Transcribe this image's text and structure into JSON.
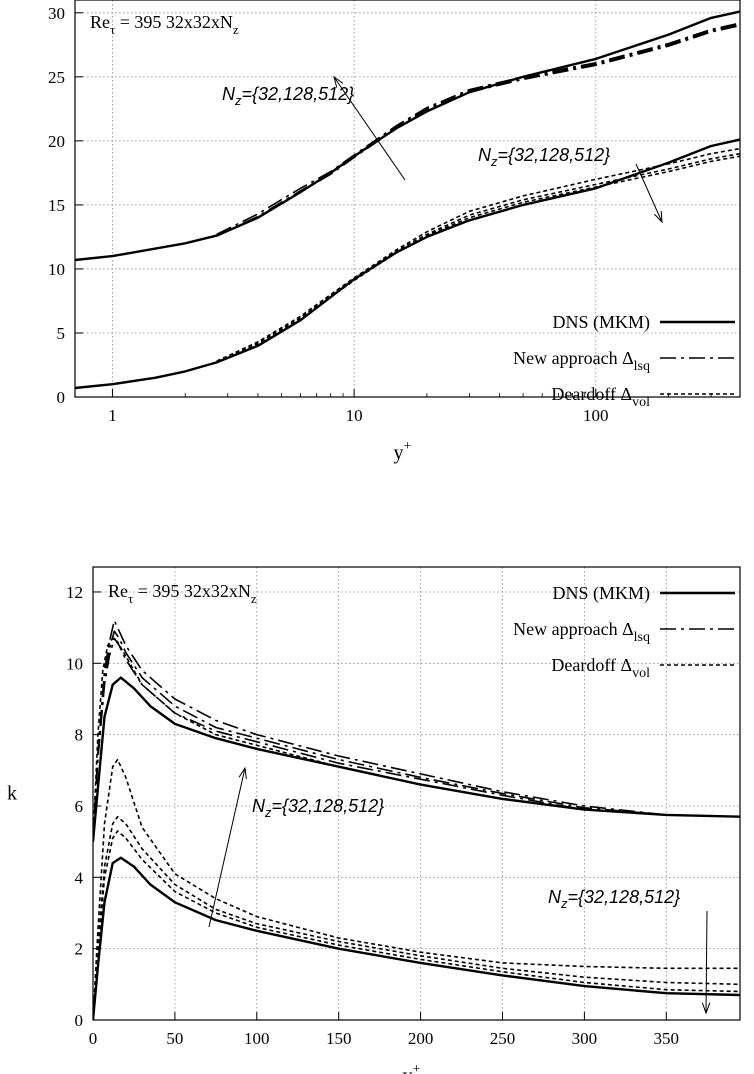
{
  "chart_data": [
    {
      "type": "line",
      "xscale": "log",
      "xlim": [
        0.7,
        395
      ],
      "ylim": [
        0,
        31
      ],
      "xlabel": "y+",
      "ylabel": "",
      "xticks": [
        1,
        10,
        100
      ],
      "yticks": [
        0,
        5,
        10,
        15,
        20,
        25,
        30
      ],
      "header": {
        "base": "Re",
        "sub": "τ",
        "rest": " = 395  32x32xN",
        "rest_sub": "z"
      },
      "annotation_upper": "N_z={32,128,512}",
      "annotation_lower": "N_z={32,128,512}",
      "legend_position": "bottom-right",
      "legend": [
        {
          "label": "DNS (MKM)",
          "sub": "",
          "style": "solid"
        },
        {
          "label": "New approach  Δ",
          "sub": "lsq",
          "style": "dashdot"
        },
        {
          "label": "Deardoff  Δ",
          "sub": "vol",
          "style": "dotted"
        }
      ],
      "series": [
        {
          "group": "upper",
          "style": "solid",
          "x": [
            0.7,
            1,
            2,
            2.7,
            4,
            6,
            8,
            10,
            15,
            20,
            30,
            50,
            100,
            200,
            300,
            395
          ],
          "y": [
            10.7,
            11,
            12,
            12.6,
            14,
            16,
            17.5,
            18.8,
            21,
            22.3,
            23.8,
            25,
            26.4,
            28.3,
            29.6,
            30.1
          ]
        },
        {
          "group": "upper",
          "style": "dashdot",
          "x": [
            2.7,
            4,
            6,
            8,
            10,
            15,
            20,
            30,
            50,
            100,
            200,
            300,
            395
          ],
          "y": [
            12.7,
            14.3,
            16.3,
            17.6,
            18.9,
            21.2,
            22.6,
            24,
            25,
            26.1,
            27.6,
            28.7,
            29.2
          ]
        },
        {
          "group": "upper",
          "style": "dashdot",
          "x": [
            2.7,
            4,
            6,
            8,
            10,
            15,
            20,
            30,
            50,
            100,
            200,
            300,
            395
          ],
          "y": [
            12.6,
            14.1,
            16.1,
            17.5,
            18.8,
            21.1,
            22.5,
            23.9,
            24.9,
            26,
            27.5,
            28.6,
            29.1
          ]
        },
        {
          "group": "upper",
          "style": "dashdot",
          "x": [
            2.7,
            4,
            6,
            8,
            10,
            15,
            20,
            30,
            50,
            100,
            200,
            300,
            395
          ],
          "y": [
            12.6,
            14,
            16,
            17.4,
            18.7,
            21,
            22.4,
            23.8,
            24.8,
            25.9,
            27.4,
            28.5,
            29
          ]
        },
        {
          "group": "lower",
          "style": "solid",
          "x": [
            0.7,
            1,
            1.5,
            2,
            2.7,
            4,
            6,
            8,
            10,
            15,
            20,
            30,
            50,
            100,
            200,
            300,
            395
          ],
          "y": [
            0.7,
            1,
            1.5,
            2,
            2.7,
            4,
            6,
            7.8,
            9.2,
            11.3,
            12.5,
            13.8,
            15,
            16.3,
            18.3,
            19.6,
            20.1
          ]
        },
        {
          "group": "lower",
          "style": "dotted",
          "x": [
            2.7,
            4,
            6,
            8,
            10,
            15,
            20,
            30,
            50,
            100,
            200,
            300,
            395
          ],
          "y": [
            2.8,
            4.3,
            6.3,
            8,
            9.3,
            11.5,
            12.9,
            14.5,
            15.7,
            17,
            18.2,
            19,
            19.4
          ]
        },
        {
          "group": "lower",
          "style": "dotted",
          "x": [
            2.7,
            4,
            6,
            8,
            10,
            15,
            20,
            30,
            50,
            100,
            200,
            300,
            395
          ],
          "y": [
            2.7,
            4.2,
            6.2,
            7.9,
            9.2,
            11.4,
            12.7,
            14.2,
            15.4,
            16.6,
            17.8,
            18.6,
            19
          ]
        },
        {
          "group": "lower",
          "style": "dotted",
          "x": [
            2.7,
            4,
            6,
            8,
            10,
            15,
            20,
            30,
            50,
            100,
            200,
            300,
            395
          ],
          "y": [
            2.7,
            4.1,
            6.1,
            7.8,
            9.1,
            11.3,
            12.6,
            14,
            15.2,
            16.4,
            17.6,
            18.4,
            18.8
          ]
        }
      ]
    },
    {
      "type": "line",
      "xscale": "linear",
      "xlim": [
        0,
        395
      ],
      "ylim": [
        0,
        12.7
      ],
      "xlabel": "y+",
      "ylabel": "k",
      "xticks": [
        0,
        50,
        100,
        150,
        200,
        250,
        300,
        350
      ],
      "yticks": [
        0,
        2,
        4,
        6,
        8,
        10,
        12
      ],
      "header": {
        "base": "Re",
        "sub": "τ",
        "rest": " = 395  32x32xN",
        "rest_sub": "z"
      },
      "annotation_upper": "N_z={32,128,512}",
      "annotation_lower": "N_z={32,128,512}",
      "legend_position": "top-right",
      "legend": [
        {
          "label": "DNS (MKM)",
          "sub": "",
          "style": "solid"
        },
        {
          "label": "New approach  Δ",
          "sub": "lsq",
          "style": "dashdot"
        },
        {
          "label": "Deardoff  Δ",
          "sub": "vol",
          "style": "dotted"
        }
      ],
      "series": [
        {
          "group": "upper",
          "style": "solid",
          "x": [
            0,
            3,
            7,
            12,
            17,
            25,
            35,
            50,
            75,
            100,
            150,
            200,
            250,
            300,
            350,
            395
          ],
          "y": [
            5,
            6.5,
            8.5,
            9.4,
            9.6,
            9.3,
            8.8,
            8.3,
            7.9,
            7.6,
            7.1,
            6.6,
            6.2,
            5.9,
            5.75,
            5.7
          ]
        },
        {
          "group": "upper",
          "style": "dashdot",
          "x": [
            0,
            3,
            7,
            10,
            13,
            16,
            20,
            30,
            50,
            75,
            100,
            150,
            200,
            250,
            300,
            350,
            395
          ],
          "y": [
            5,
            7.5,
            9.8,
            10.6,
            11.2,
            10.9,
            10.5,
            9.8,
            9,
            8.4,
            8,
            7.4,
            6.9,
            6.4,
            6,
            5.75,
            5.7
          ]
        },
        {
          "group": "upper",
          "style": "dashdot",
          "x": [
            0,
            3,
            7,
            10,
            13,
            16,
            20,
            30,
            50,
            75,
            100,
            150,
            200,
            250,
            300,
            350,
            395
          ],
          "y": [
            5,
            7.4,
            9.6,
            10.4,
            10.9,
            10.7,
            10.3,
            9.6,
            8.8,
            8.2,
            7.9,
            7.3,
            6.8,
            6.35,
            5.95,
            5.75,
            5.7
          ]
        },
        {
          "group": "upper",
          "style": "dashdot",
          "x": [
            0,
            3,
            7,
            10,
            13,
            16,
            20,
            30,
            50,
            75,
            100,
            150,
            200,
            250,
            300,
            350,
            395
          ],
          "y": [
            5,
            7.3,
            9.4,
            10.2,
            10.7,
            10.5,
            10.1,
            9.4,
            8.6,
            8.1,
            7.8,
            7.2,
            6.75,
            6.3,
            5.9,
            5.75,
            5.7
          ]
        },
        {
          "group": "upper",
          "style": "dotted",
          "x": [
            0,
            3,
            6,
            9,
            12,
            15,
            20,
            30,
            50,
            75,
            100,
            150,
            200,
            250,
            300,
            350,
            395
          ],
          "y": [
            5,
            8,
            9.8,
            10.5,
            10.7,
            10.6,
            10.2,
            9.4,
            8.6,
            8,
            7.7,
            7.1,
            6.6,
            6.2,
            5.9,
            5.75,
            5.7
          ]
        },
        {
          "group": "lower",
          "style": "solid",
          "x": [
            0,
            3,
            7,
            12,
            17,
            25,
            35,
            50,
            75,
            100,
            150,
            200,
            250,
            300,
            350,
            395
          ],
          "y": [
            0,
            1.5,
            3.3,
            4.4,
            4.55,
            4.3,
            3.8,
            3.3,
            2.8,
            2.5,
            2,
            1.6,
            1.25,
            0.95,
            0.75,
            0.7
          ]
        },
        {
          "group": "lower",
          "style": "dotted",
          "x": [
            0,
            3,
            7,
            12,
            15,
            20,
            30,
            50,
            75,
            100,
            150,
            200,
            250,
            300,
            350,
            395
          ],
          "y": [
            0,
            2.5,
            5.5,
            7.1,
            7.3,
            6.8,
            5.4,
            4.1,
            3.4,
            2.9,
            2.3,
            1.9,
            1.6,
            1.5,
            1.45,
            1.45
          ]
        },
        {
          "group": "lower",
          "style": "dotted",
          "x": [
            0,
            3,
            7,
            12,
            15,
            20,
            30,
            50,
            75,
            100,
            150,
            200,
            250,
            300,
            350,
            395
          ],
          "y": [
            0,
            2,
            4.3,
            5.5,
            5.7,
            5.5,
            4.8,
            3.8,
            3.1,
            2.7,
            2.2,
            1.8,
            1.45,
            1.2,
            1.05,
            1
          ]
        },
        {
          "group": "lower",
          "style": "dotted",
          "x": [
            0,
            3,
            7,
            12,
            15,
            20,
            30,
            50,
            75,
            100,
            150,
            200,
            250,
            300,
            350,
            395
          ],
          "y": [
            0,
            1.8,
            4,
            5.1,
            5.3,
            5.1,
            4.5,
            3.6,
            3,
            2.6,
            2.1,
            1.7,
            1.35,
            1.05,
            0.85,
            0.8
          ]
        }
      ]
    }
  ]
}
